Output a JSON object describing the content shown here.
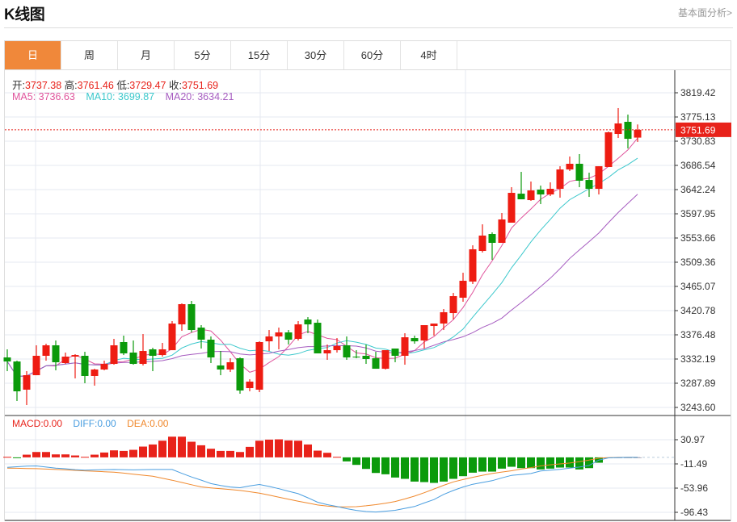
{
  "header": {
    "title": "K线图",
    "link": "基本面分析>"
  },
  "tabs": [
    {
      "label": "日",
      "active": true
    },
    {
      "label": "周"
    },
    {
      "label": "月"
    },
    {
      "label": "5分"
    },
    {
      "label": "15分"
    },
    {
      "label": "30分"
    },
    {
      "label": "60分"
    },
    {
      "label": "4时"
    }
  ],
  "ohlc_info": {
    "open_label": "开:",
    "open": "3737.38",
    "high_label": "高:",
    "high": "3761.46",
    "low_label": "低:",
    "low": "3729.47",
    "close_label": "收:",
    "close": "3751.69"
  },
  "ma_info": {
    "ma5": "MA5: 3736.63",
    "ma10": "MA10: 3699.87",
    "ma20": "MA20: 3634.21"
  },
  "macd_info": {
    "macd": "MACD:0.00",
    "diff": "DIFF:0.00",
    "dea": "DEA:0.00"
  },
  "colors": {
    "up": "#ee1c12",
    "down": "#0b9a0b",
    "ma5": "#e0549c",
    "ma10": "#3cc8cc",
    "ma20": "#a65cc0",
    "macd": "#e8221a",
    "diff": "#4a9ee0",
    "dea": "#f0882c",
    "active_tab": "#f0883a"
  },
  "chart_data": [
    {
      "type": "candlestick",
      "price_axis_ticks": [
        "3819.42",
        "3775.13",
        "3730.83",
        "3686.54",
        "3642.24",
        "3597.95",
        "3553.66",
        "3509.36",
        "3465.07",
        "3420.78",
        "3376.48",
        "3332.19",
        "3287.89",
        "3243.60"
      ],
      "ylim": [
        3243.6,
        3819.42
      ],
      "last_price_label": "3751.69",
      "ma_periods": [
        5,
        10,
        20
      ],
      "grid": true,
      "ohlc": [
        [
          3335.1,
          3349.9,
          3310.0,
          3327.7
        ],
        [
          3327.7,
          3329.2,
          3255.4,
          3273.1
        ],
        [
          3276.1,
          3310.0,
          3248.0,
          3302.6
        ],
        [
          3302.6,
          3357.3,
          3302.6,
          3338.1
        ],
        [
          3338.1,
          3360.2,
          3329.2,
          3357.3
        ],
        [
          3357.3,
          3366.1,
          3311.5,
          3326.3
        ],
        [
          3324.8,
          3344.0,
          3323.3,
          3336.6
        ],
        [
          3336.6,
          3341.0,
          3296.7,
          3339.5
        ],
        [
          3338.1,
          3345.4,
          3287.9,
          3301.2
        ],
        [
          3301.2,
          3314.4,
          3283.4,
          3313.0
        ],
        [
          3313.0,
          3329.2,
          3311.5,
          3323.3
        ],
        [
          3323.3,
          3369.1,
          3321.8,
          3357.3
        ],
        [
          3363.2,
          3375.0,
          3339.5,
          3342.5
        ],
        [
          3344.0,
          3366.1,
          3321.8,
          3323.3
        ],
        [
          3323.3,
          3377.9,
          3320.4,
          3346.9
        ],
        [
          3349.9,
          3352.8,
          3310.0,
          3338.1
        ],
        [
          3339.5,
          3361.7,
          3336.6,
          3349.9
        ],
        [
          3348.4,
          3401.6,
          3348.4,
          3397.1
        ],
        [
          3395.6,
          3434.0,
          3383.8,
          3432.6
        ],
        [
          3432.6,
          3438.5,
          3380.9,
          3385.3
        ],
        [
          3389.7,
          3394.2,
          3351.4,
          3367.6
        ],
        [
          3367.6,
          3373.5,
          3324.8,
          3335.1
        ],
        [
          3320.4,
          3346.9,
          3302.6,
          3313.0
        ],
        [
          3313.0,
          3333.6,
          3308.5,
          3326.3
        ],
        [
          3333.6,
          3335.1,
          3268.7,
          3274.6
        ],
        [
          3279.0,
          3295.2,
          3273.1,
          3290.8
        ],
        [
          3276.1,
          3364.6,
          3271.6,
          3363.2
        ],
        [
          3364.6,
          3385.3,
          3346.9,
          3373.5
        ],
        [
          3373.5,
          3389.7,
          3349.9,
          3380.9
        ],
        [
          3380.9,
          3385.3,
          3358.7,
          3367.6
        ],
        [
          3369.1,
          3401.6,
          3366.1,
          3395.6
        ],
        [
          3404.5,
          3408.9,
          3379.4,
          3395.6
        ],
        [
          3398.6,
          3404.5,
          3342.5,
          3342.5
        ],
        [
          3342.5,
          3358.7,
          3330.7,
          3348.4
        ],
        [
          3348.4,
          3370.5,
          3344.0,
          3355.8
        ],
        [
          3357.3,
          3373.5,
          3330.7,
          3335.1
        ],
        [
          3336.6,
          3348.4,
          3333.6,
          3335.1
        ],
        [
          3338.1,
          3358.7,
          3323.3,
          3332.2
        ],
        [
          3333.6,
          3345.4,
          3314.4,
          3314.4
        ],
        [
          3314.4,
          3348.4,
          3313.0,
          3348.4
        ],
        [
          3351.4,
          3351.4,
          3326.3,
          3338.1
        ],
        [
          3338.1,
          3379.4,
          3321.8,
          3372.0
        ],
        [
          3370.5,
          3375.0,
          3360.2,
          3364.6
        ],
        [
          3366.1,
          3394.2,
          3351.4,
          3394.2
        ],
        [
          3392.7,
          3397.1,
          3375.0,
          3397.1
        ],
        [
          3397.1,
          3423.7,
          3385.3,
          3417.8
        ],
        [
          3416.3,
          3453.2,
          3404.5,
          3447.3
        ],
        [
          3444.4,
          3490.1,
          3437.0,
          3475.4
        ],
        [
          3473.9,
          3540.3,
          3469.5,
          3533.0
        ],
        [
          3530.0,
          3578.7,
          3527.1,
          3558.1
        ],
        [
          3561.0,
          3564.0,
          3513.8,
          3544.8
        ],
        [
          3544.8,
          3599.4,
          3544.8,
          3587.6
        ],
        [
          3581.7,
          3646.7,
          3581.7,
          3636.3
        ],
        [
          3634.8,
          3674.7,
          3624.5,
          3624.5
        ],
        [
          3623.0,
          3657.0,
          3621.6,
          3640.8
        ],
        [
          3642.2,
          3649.6,
          3615.7,
          3633.4
        ],
        [
          3633.4,
          3655.5,
          3630.4,
          3643.7
        ],
        [
          3643.7,
          3685.0,
          3627.5,
          3679.1
        ],
        [
          3679.1,
          3702.8,
          3676.2,
          3689.5
        ],
        [
          3689.5,
          3707.2,
          3646.7,
          3658.5
        ],
        [
          3659.9,
          3673.2,
          3628.9,
          3643.7
        ],
        [
          3643.7,
          3685.0,
          3633.4,
          3685.0
        ],
        [
          3683.6,
          3748.5,
          3683.6,
          3747.1
        ],
        [
          3744.1,
          3791.4,
          3736.7,
          3763.3
        ],
        [
          3766.3,
          3779.5,
          3717.5,
          3735.2
        ],
        [
          3737.38,
          3761.46,
          3729.47,
          3751.69
        ]
      ]
    },
    {
      "type": "macd",
      "axis_ticks": [
        "30.97",
        "-11.49",
        "-53.96",
        "-96.43"
      ],
      "ylim": [
        -96.43,
        30.97
      ],
      "histogram": [
        0.9,
        -0.9,
        4.7,
        9.4,
        9.4,
        5.2,
        5.2,
        3.3,
        0.9,
        4.7,
        8.5,
        12.3,
        11.3,
        13.2,
        18.9,
        22.6,
        29.2,
        36.3,
        36.3,
        27.4,
        21.2,
        15.1,
        11.3,
        11.3,
        9.4,
        18.4,
        29.2,
        31.1,
        31.6,
        29.7,
        29.2,
        22.6,
        11.8,
        8.0,
        0.9,
        -7.1,
        -13.2,
        -20.3,
        -27.4,
        -29.7,
        -35.4,
        -37.7,
        -42.5,
        -43.4,
        -44.8,
        -42.5,
        -37.7,
        -33.0,
        -26.9,
        -25.0,
        -25.0,
        -19.8,
        -16.5,
        -18.9,
        -18.9,
        -21.2,
        -19.8,
        -17.9,
        -17.9,
        -21.2,
        -18.9,
        -9.4,
        -0.9,
        -0.5,
        -1.0,
        0
      ],
      "diff": [
        -17.5,
        -16.5,
        -15.5,
        -15.1,
        -17,
        -18.9,
        -20,
        -21.5,
        -22.6,
        -22,
        -21.5,
        -21.2,
        -21.5,
        -22,
        -21.5,
        -21.2,
        -21.2,
        -21.2,
        -28,
        -34.4,
        -40,
        -46,
        -49.5,
        -52,
        -53.3,
        -50,
        -47.6,
        -51,
        -55,
        -59.5,
        -63.7,
        -71,
        -78.8,
        -83,
        -86.3,
        -90,
        -93,
        -95,
        -95.8,
        -94.5,
        -92.9,
        -89.5,
        -86.3,
        -80,
        -74,
        -65,
        -58,
        -52,
        -47.2,
        -44,
        -41,
        -36,
        -31.6,
        -30,
        -28.3,
        -24,
        -22.5,
        -21,
        -19,
        -17,
        -14.2,
        -4.7,
        -0.9,
        -0.3,
        0,
        0
      ],
      "dea": [
        -18.9,
        -19.2,
        -19.5,
        -19.8,
        -20.5,
        -21.3,
        -22,
        -22.8,
        -23.6,
        -24.4,
        -25.2,
        -25.9,
        -27.7,
        -29.5,
        -31.3,
        -33.0,
        -36.5,
        -40.1,
        -44,
        -48,
        -51.9,
        -53.5,
        -55,
        -56.5,
        -58,
        -60.3,
        -62.7,
        -66.2,
        -69.8,
        -73.3,
        -76.9,
        -80.2,
        -83.5,
        -85.5,
        -86.8,
        -87,
        -86.5,
        -85,
        -83,
        -80.5,
        -77.5,
        -73,
        -68,
        -62,
        -55.5,
        -49,
        -43,
        -39,
        -35,
        -31.5,
        -28.3,
        -25.8,
        -23.5,
        -20.5,
        -18,
        -15,
        -13,
        -11.5,
        -10,
        -7.5,
        -4.8,
        -1.4,
        -0.5,
        0,
        0,
        0
      ]
    }
  ]
}
